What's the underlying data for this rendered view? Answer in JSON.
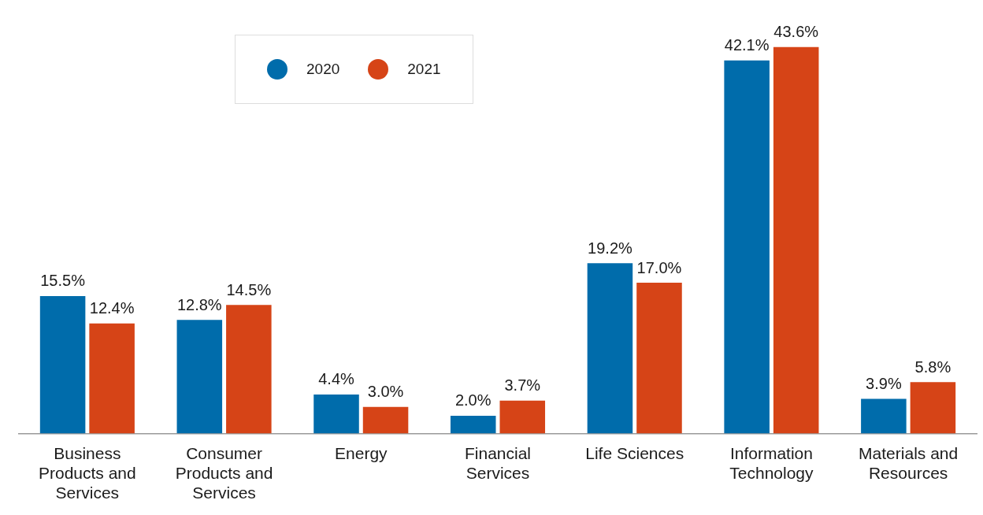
{
  "chart_data": {
    "type": "bar",
    "categories": [
      "Business Products and Services",
      "Consumer Products and Services",
      "Energy",
      "Financial Services",
      "Life Sciences",
      "Information Technology",
      "Materials and Resources"
    ],
    "series": [
      {
        "name": "2020",
        "color": "#006cab",
        "values": [
          15.5,
          12.8,
          4.4,
          2.0,
          19.2,
          42.1,
          3.9
        ],
        "value_labels": [
          "15.5%",
          "12.8%",
          "4.4%",
          "2.0%",
          "19.2%",
          "42.1%",
          "3.9%"
        ]
      },
      {
        "name": "2021",
        "color": "#d64417",
        "values": [
          12.4,
          14.5,
          3.0,
          3.7,
          17.0,
          43.6,
          5.8
        ],
        "value_labels": [
          "12.4%",
          "14.5%",
          "3.0%",
          "3.7%",
          "17.0%",
          "43.6%",
          "5.8%"
        ]
      }
    ],
    "legend": "top left",
    "grid": false
  }
}
